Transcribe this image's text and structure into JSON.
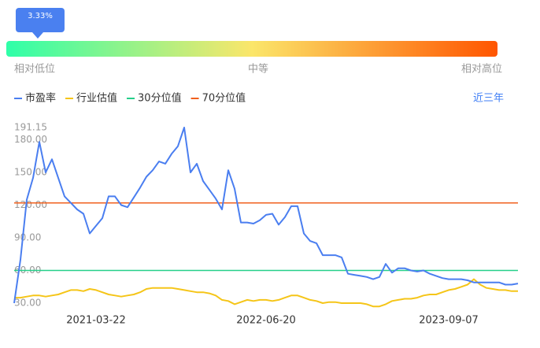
{
  "gauge": {
    "value": 3.33,
    "label": "3.33%",
    "low": "相对低位",
    "mid": "中等",
    "high": "相对高位"
  },
  "range_button": "近三年",
  "chart_data": {
    "type": "line",
    "categories": [
      null,
      null,
      null,
      null,
      null,
      null,
      null,
      null,
      null,
      null,
      null,
      null,
      null,
      "2021-03-22",
      null,
      null,
      null,
      null,
      null,
      null,
      null,
      null,
      null,
      null,
      null,
      null,
      null,
      null,
      null,
      null,
      null,
      null,
      null,
      null,
      null,
      null,
      null,
      null,
      null,
      null,
      "2022-06-20",
      null,
      null,
      null,
      null,
      null,
      null,
      null,
      null,
      null,
      null,
      null,
      null,
      null,
      null,
      null,
      null,
      null,
      null,
      null,
      null,
      null,
      null,
      null,
      null,
      null,
      null,
      null,
      null,
      "2023-09-07",
      null,
      null,
      null,
      null,
      null,
      null,
      null,
      null,
      null,
      null,
      null
    ],
    "series": [
      {
        "name": "市盈率",
        "color": "#4a7ef0",
        "values": [
          30,
          70,
          125,
          145,
          178,
          150,
          162,
          145,
          128,
          122,
          116,
          112,
          94,
          101,
          108,
          128,
          128,
          120,
          118,
          127,
          136,
          146,
          152,
          160,
          158,
          167,
          174,
          191.15,
          150,
          158,
          142,
          134,
          126,
          116,
          152,
          135,
          104,
          104,
          103,
          106,
          111,
          112,
          102,
          109,
          119,
          119,
          94,
          87,
          85,
          74,
          74,
          74,
          72,
          57,
          56,
          55,
          54,
          52,
          54,
          66,
          58,
          62,
          62,
          60,
          59,
          60,
          57,
          55,
          53,
          52,
          52,
          52,
          51,
          49,
          49,
          49,
          49,
          49,
          47,
          47,
          48
        ]
      },
      {
        "name": "行业估值",
        "color": "#f5c518",
        "values": [
          35,
          35,
          36,
          37,
          37,
          36,
          37,
          38,
          40,
          42,
          42,
          41,
          43,
          42,
          40,
          38,
          37,
          36,
          37,
          38,
          40,
          43,
          44,
          44,
          44,
          44,
          43,
          42,
          41,
          40,
          40,
          39,
          37,
          33,
          32,
          29,
          31,
          33,
          32,
          33,
          33,
          32,
          33,
          35,
          37,
          37,
          35,
          33,
          32,
          30,
          31,
          31,
          30,
          30,
          30,
          30,
          29,
          27,
          27,
          29,
          32,
          33,
          34,
          34,
          35,
          37,
          38,
          38,
          40,
          42,
          43,
          45,
          47,
          52,
          47,
          44,
          43,
          42,
          42,
          41,
          41
        ]
      }
    ],
    "reference_lines": [
      {
        "name": "30分位值",
        "color": "#25cf8a",
        "value": 60
      },
      {
        "name": "70分位值",
        "color": "#f0601e",
        "value": 122
      }
    ],
    "ylim": [
      22.8,
      191.15
    ],
    "yticks": [
      {
        "value": 30,
        "label": "30.00"
      },
      {
        "value": 60,
        "label": "60.00"
      },
      {
        "value": 90,
        "label": "90.00"
      },
      {
        "value": 120,
        "label": "120.00"
      },
      {
        "value": 150,
        "label": "150.00"
      },
      {
        "value": 180,
        "label": "180.00"
      },
      191.15
    ]
  }
}
